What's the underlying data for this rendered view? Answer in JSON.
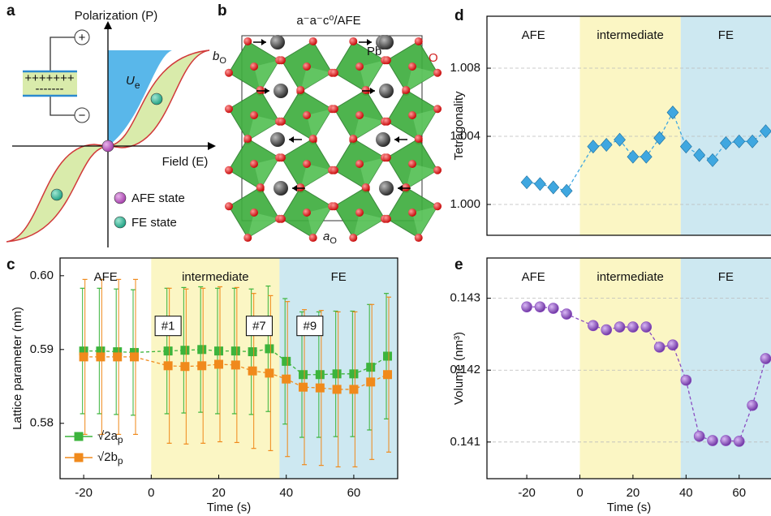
{
  "panel_a": {
    "label": "a",
    "y_axis_label": "Polarization (P)",
    "x_axis_label": "Field (E)",
    "energy_symbol": "U",
    "energy_subscript": "e",
    "plus": "+",
    "minus": "−",
    "plate_top": "+++++++",
    "plate_bottom": "-------",
    "legend": [
      "AFE state",
      "FE state"
    ]
  },
  "panel_b": {
    "label": "b",
    "title": "a⁻a⁻c⁰/AFE",
    "b_axis": "b",
    "a_axis": "a",
    "axis_subscript": "O",
    "atoms": [
      "Pb",
      "O"
    ]
  },
  "chart_data": [
    {
      "label": "c",
      "type": "line",
      "xlabel": "Time (s)",
      "ylabel": "Lattice parameter (nm)",
      "x": [
        -20,
        -15,
        -10,
        -5,
        5,
        10,
        15,
        20,
        25,
        30,
        35,
        40,
        45,
        50,
        55,
        60,
        65,
        70
      ],
      "xlim": [
        -27,
        73
      ],
      "xticks": [
        -20,
        0,
        20,
        40,
        60
      ],
      "ylim": [
        0.5725,
        0.6024
      ],
      "yticks": [
        0.58,
        0.59,
        {
          "value": 0.6,
          "label": "0.60"
        }
      ],
      "grid": false,
      "regions": [
        {
          "label": "AFE",
          "range": [
            -27,
            0
          ],
          "color": "#ffffff"
        },
        {
          "label": "intermediate",
          "range": [
            0,
            38
          ],
          "color": "#fbf6c4"
        },
        {
          "label": "FE",
          "range": [
            38,
            73
          ],
          "color": "#cde8f1"
        }
      ],
      "annotations": [
        "#1",
        "#7",
        "#9"
      ],
      "series": [
        {
          "name": "√2a",
          "subscript": "p",
          "color": "#3cb43c",
          "marker": "square",
          "values": [
            0.5898,
            0.5898,
            0.5897,
            0.5896,
            0.5898,
            0.5899,
            0.59,
            0.5898,
            0.5898,
            0.5897,
            0.5901,
            0.5884,
            0.5866,
            0.5866,
            0.5867,
            0.5867,
            0.5876,
            0.5891
          ],
          "errors": [
            0.0085,
            0.0085,
            0.0085,
            0.0085,
            0.0085,
            0.0085,
            0.0085,
            0.0085,
            0.0085,
            0.0085,
            0.0085,
            0.0085,
            0.0085,
            0.0085,
            0.0085,
            0.0085,
            0.0085,
            0.0085
          ]
        },
        {
          "name": "√2b",
          "subscript": "p",
          "color": "#f08a1c",
          "marker": "square",
          "values": [
            0.589,
            0.589,
            0.589,
            0.589,
            0.5878,
            0.5877,
            0.5878,
            0.588,
            0.5879,
            0.5871,
            0.5868,
            0.586,
            0.5849,
            0.5848,
            0.5846,
            0.5846,
            0.5856,
            0.5866
          ],
          "errors": [
            0.0105,
            0.0105,
            0.0105,
            0.0105,
            0.0105,
            0.0105,
            0.0105,
            0.0105,
            0.0105,
            0.0105,
            0.0105,
            0.0105,
            0.0105,
            0.0105,
            0.0105,
            0.0105,
            0.0105,
            0.0105
          ]
        }
      ]
    },
    {
      "label": "d",
      "type": "line",
      "ylabel": "Tetragonality",
      "x": [
        -20,
        -15,
        -10,
        -5,
        5,
        10,
        15,
        20,
        25,
        30,
        35,
        40,
        45,
        50,
        55,
        60,
        65,
        70
      ],
      "xlim": [
        -35,
        72
      ],
      "ylim": [
        0.99819,
        1.01105
      ],
      "yticks": [
        {
          "value": 1,
          "label": "1.000"
        },
        1.004,
        1.008
      ],
      "grid": true,
      "regions": [
        {
          "label": "AFE",
          "range": [
            -35,
            0
          ],
          "color": "#ffffff"
        },
        {
          "label": "intermediate",
          "range": [
            0,
            38
          ],
          "color": "#fbf6c4"
        },
        {
          "label": "FE",
          "range": [
            38,
            72
          ],
          "color": "#cde8f1"
        }
      ],
      "series": [
        {
          "color": "#3fa7e0",
          "marker": "diamond",
          "values": [
            1.0013,
            1.0012,
            1.001,
            1.0008,
            1.0034,
            1.0035,
            1.0038,
            1.0028,
            1.0028,
            1.0039,
            1.0054,
            1.0034,
            1.0029,
            1.0026,
            1.0036,
            1.0037,
            1.0037,
            1.0043
          ]
        }
      ]
    },
    {
      "label": "e",
      "type": "line",
      "xlabel": "Time (s)",
      "ylabel": "Volume (nm³)",
      "x": [
        -20,
        -15,
        -10,
        -5,
        5,
        10,
        15,
        20,
        25,
        30,
        35,
        40,
        45,
        50,
        55,
        60,
        65,
        70
      ],
      "xlim": [
        -35,
        72
      ],
      "xticks": [
        -20,
        0,
        20,
        40,
        60
      ],
      "ylim": [
        0.14049,
        0.14356
      ],
      "yticks": [
        0.141,
        0.142,
        0.143
      ],
      "grid": true,
      "regions": [
        {
          "label": "AFE",
          "range": [
            -35,
            0
          ],
          "color": "#ffffff"
        },
        {
          "label": "intermediate",
          "range": [
            0,
            38
          ],
          "color": "#fbf6c4"
        },
        {
          "label": "FE",
          "range": [
            38,
            72
          ],
          "color": "#cde8f1"
        }
      ],
      "series": [
        {
          "color": "#8a4cc2",
          "marker": "circle",
          "values": [
            0.14288,
            0.14288,
            0.14286,
            0.14278,
            0.14262,
            0.14256,
            0.1426,
            0.1426,
            0.1426,
            0.14232,
            0.14235,
            0.14186,
            0.14108,
            0.14102,
            0.14102,
            0.14101,
            0.14151,
            0.14216
          ]
        }
      ]
    }
  ]
}
